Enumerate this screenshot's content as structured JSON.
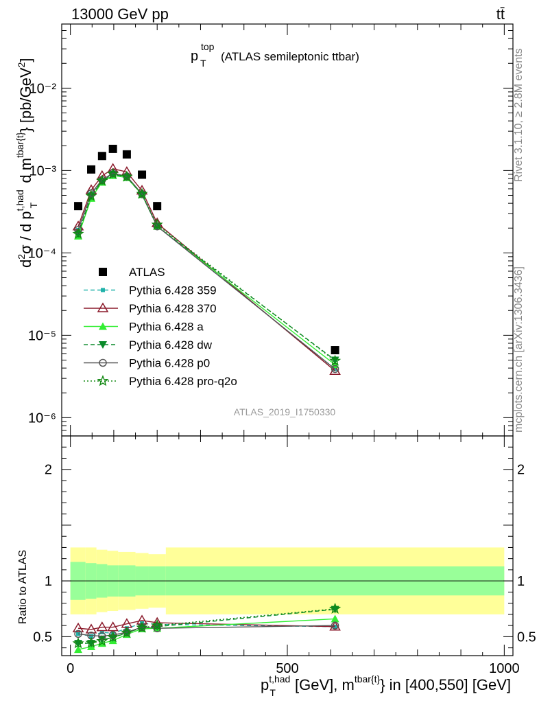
{
  "header": {
    "left_text": "13000 GeV pp",
    "right_text": "tt̄"
  },
  "side_text": {
    "rivet": "Rivet 3.1.10, ≥ 2.8M events",
    "mcplots": "mcplots.cern.ch [arXiv:1306.3436]"
  },
  "chart_data": [
    {
      "type": "scatter",
      "panel": "main",
      "title_main": "p",
      "title_sub": "T",
      "title_sup": "top",
      "title_rest": "(ATLAS semileptonic ttbar)",
      "watermark": "ATLAS_2019_I1750330",
      "ylabel_html": "d²σ / d p_T^{t,had} d m^{tbar{t}} [pb/GeV²]",
      "yscale": "log",
      "ylim": [
        6e-07,
        0.06
      ],
      "xlim": [
        -20,
        1020
      ],
      "ytick_labels": [
        "10⁻²",
        "10⁻³",
        "10⁻⁴",
        "10⁻⁵",
        "10⁻⁶"
      ],
      "legend_placement": "middle-left",
      "x": [
        18,
        48,
        73,
        98,
        130,
        165,
        200,
        610
      ],
      "series": [
        {
          "name": "ATLAS",
          "values": [
            0.00037,
            0.00103,
            0.0015,
            0.00183,
            0.00157,
            0.00089,
            0.00037,
            6.6e-06
          ],
          "color": "#000000",
          "marker": "square",
          "line": "none"
        },
        {
          "name": "Pythia 6.428 359",
          "values": [
            0.00019,
            0.00052,
            0.00076,
            0.00092,
            0.00084,
            0.00051,
            0.00021,
            3.9e-06
          ],
          "color": "#20b2aa",
          "marker": "small-square",
          "line": "dashed"
        },
        {
          "name": "Pythia 6.428 370",
          "values": [
            0.00021,
            0.00058,
            0.00086,
            0.00105,
            0.00096,
            0.00057,
            0.00023,
            3.7e-06
          ],
          "color": "#8b1a2b",
          "marker": "open-triangle",
          "line": "solid"
        },
        {
          "name": "Pythia 6.428 a",
          "values": [
            0.00016,
            0.00046,
            0.00072,
            0.00087,
            0.00082,
            0.00051,
            0.00021,
            4.4e-06
          ],
          "color": "#33ee33",
          "marker": "triangle",
          "line": "solid"
        },
        {
          "name": "Pythia 6.428 dw",
          "values": [
            0.00017,
            0.00049,
            0.00074,
            0.0009,
            0.00083,
            0.00051,
            0.00021,
            5e-06
          ],
          "color": "#0a8a2a",
          "marker": "down-triangle",
          "line": "dashed"
        },
        {
          "name": "Pythia 6.428 p0",
          "values": [
            0.00019,
            0.00053,
            0.00077,
            0.00093,
            0.00085,
            0.00052,
            0.00021,
            3.9e-06
          ],
          "color": "#555555",
          "marker": "open-circle",
          "line": "solid"
        },
        {
          "name": "Pythia 6.428 pro-q2o",
          "values": [
            0.00017,
            0.00049,
            0.00075,
            0.00091,
            0.00084,
            0.00052,
            0.00022,
            4.9e-06
          ],
          "color": "#118811",
          "marker": "star",
          "line": "dotted"
        }
      ]
    },
    {
      "type": "line",
      "panel": "ratio",
      "ylabel": "Ratio to ATLAS",
      "xlabel_html": "p_T^{t,had} [GeV], m^{tbar{t}} in [400,550] [GeV]",
      "ylim": [
        0.33,
        2.3
      ],
      "xlim": [
        -20,
        1020
      ],
      "ytick_labels": [
        "0.5",
        "1",
        "2"
      ],
      "xtick_labels": [
        "0",
        "500",
        "1000"
      ],
      "reference_line": 1,
      "uncertainty_bands": {
        "edges": [
          0,
          35,
          60,
          85,
          110,
          150,
          180,
          220,
          1000
        ],
        "inner_half_width": [
          0.17,
          0.16,
          0.15,
          0.14,
          0.14,
          0.13,
          0.13,
          0.13
        ],
        "outer_half_width": [
          0.3,
          0.3,
          0.28,
          0.27,
          0.26,
          0.25,
          0.24,
          0.3
        ],
        "inner_color": "#99ff99",
        "outer_color": "#ffff99"
      },
      "x": [
        18,
        48,
        73,
        98,
        130,
        165,
        200,
        610
      ],
      "series": [
        {
          "name": "Pythia 6.428 359",
          "values": [
            0.525,
            0.505,
            0.54,
            0.53,
            0.575,
            0.62,
            0.61,
            0.59
          ],
          "color": "#20b2aa",
          "marker": "small-square",
          "line": "dashed"
        },
        {
          "name": "Pythia 6.428 370",
          "values": [
            0.575,
            0.565,
            0.585,
            0.585,
            0.615,
            0.645,
            0.625,
            0.59
          ],
          "color": "#8b1a2b",
          "marker": "open-triangle",
          "line": "solid"
        },
        {
          "name": "Pythia 6.428 a",
          "values": [
            0.385,
            0.41,
            0.44,
            0.465,
            0.52,
            0.57,
            0.575,
            0.66
          ],
          "color": "#33ee33",
          "marker": "triangle",
          "line": "solid"
        },
        {
          "name": "Pythia 6.428 dw",
          "values": [
            0.44,
            0.44,
            0.475,
            0.49,
            0.535,
            0.58,
            0.59,
            0.745
          ],
          "color": "#0a8a2a",
          "marker": "down-triangle",
          "line": "dashed"
        },
        {
          "name": "Pythia 6.428 p0",
          "values": [
            0.525,
            0.51,
            0.505,
            0.515,
            0.54,
            0.585,
            0.575,
            0.6
          ],
          "color": "#555555",
          "marker": "open-circle",
          "line": "solid"
        },
        {
          "name": "Pythia 6.428 pro-q2o",
          "values": [
            0.44,
            0.445,
            0.46,
            0.495,
            0.535,
            0.58,
            0.6,
            0.75
          ],
          "color": "#118811",
          "marker": "star",
          "line": "dotted"
        }
      ]
    }
  ]
}
